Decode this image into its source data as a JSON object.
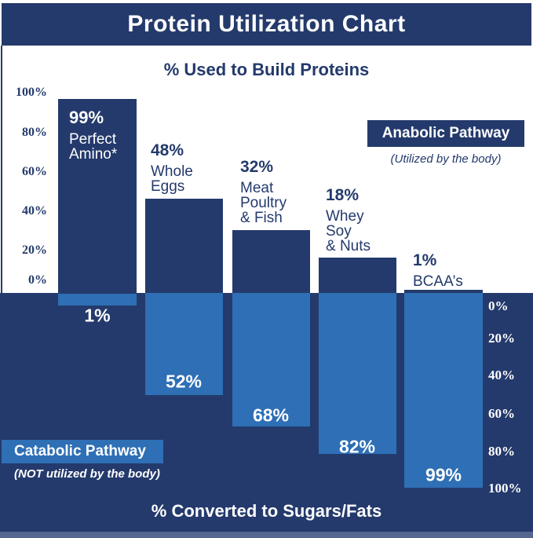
{
  "title": "Protein Utilization Chart",
  "top_section": {
    "heading": "% Used to Build Proteins",
    "axis_ticks": [
      "100%",
      "80%",
      "60%",
      "40%",
      "20%",
      "0%"
    ]
  },
  "bottom_section": {
    "heading": "% Converted to Sugars/Fats",
    "axis_ticks": [
      "0%",
      "20%",
      "40%",
      "60%",
      "80%",
      "100%"
    ]
  },
  "legend": {
    "anabolic": {
      "label": "Anabolic Pathway",
      "sublabel": "(Utilized by the body)"
    },
    "catabolic": {
      "label": "Catabolic Pathway",
      "sublabel": "(NOT utilized by the body)"
    }
  },
  "colors": {
    "navy": "#243a6c",
    "light_blue": "#2e6fb5",
    "white": "#ffffff"
  },
  "bars": [
    {
      "pct_top": "99%",
      "name_lines": [
        "Perfect",
        "Amino*"
      ],
      "pct_bottom": "1%"
    },
    {
      "pct_top": "48%",
      "name_lines": [
        "Whole",
        "Eggs"
      ],
      "pct_bottom": "52%"
    },
    {
      "pct_top": "32%",
      "name_lines": [
        "Meat",
        "Poultry",
        "& Fish"
      ],
      "pct_bottom": "68%"
    },
    {
      "pct_top": "18%",
      "name_lines": [
        "Whey",
        "Soy",
        "& Nuts"
      ],
      "pct_bottom": "82%"
    },
    {
      "pct_top": "1%",
      "name_lines": [
        "BCAA’s"
      ],
      "pct_bottom": "99%"
    }
  ],
  "chart_data": {
    "type": "bar",
    "orientation": "mirrored-vertical",
    "title": "Protein Utilization Chart",
    "categories": [
      "Perfect Amino*",
      "Whole Eggs",
      "Meat Poultry & Fish",
      "Whey Soy & Nuts",
      "BCAA's"
    ],
    "series": [
      {
        "name": "Anabolic Pathway — % Used to Build Proteins",
        "values": [
          99,
          48,
          32,
          18,
          1
        ]
      },
      {
        "name": "Catabolic Pathway — % Converted to Sugars/Fats",
        "values": [
          1,
          52,
          68,
          82,
          99
        ]
      }
    ],
    "ylabel_top": "% Used to Build Proteins",
    "ylabel_bottom": "% Converted to Sugars/Fats",
    "ylim_top": [
      0,
      100
    ],
    "ylim_bottom": [
      0,
      100
    ],
    "grid": false,
    "legend_position": "anabolic top-right, catabolic bottom-left"
  }
}
